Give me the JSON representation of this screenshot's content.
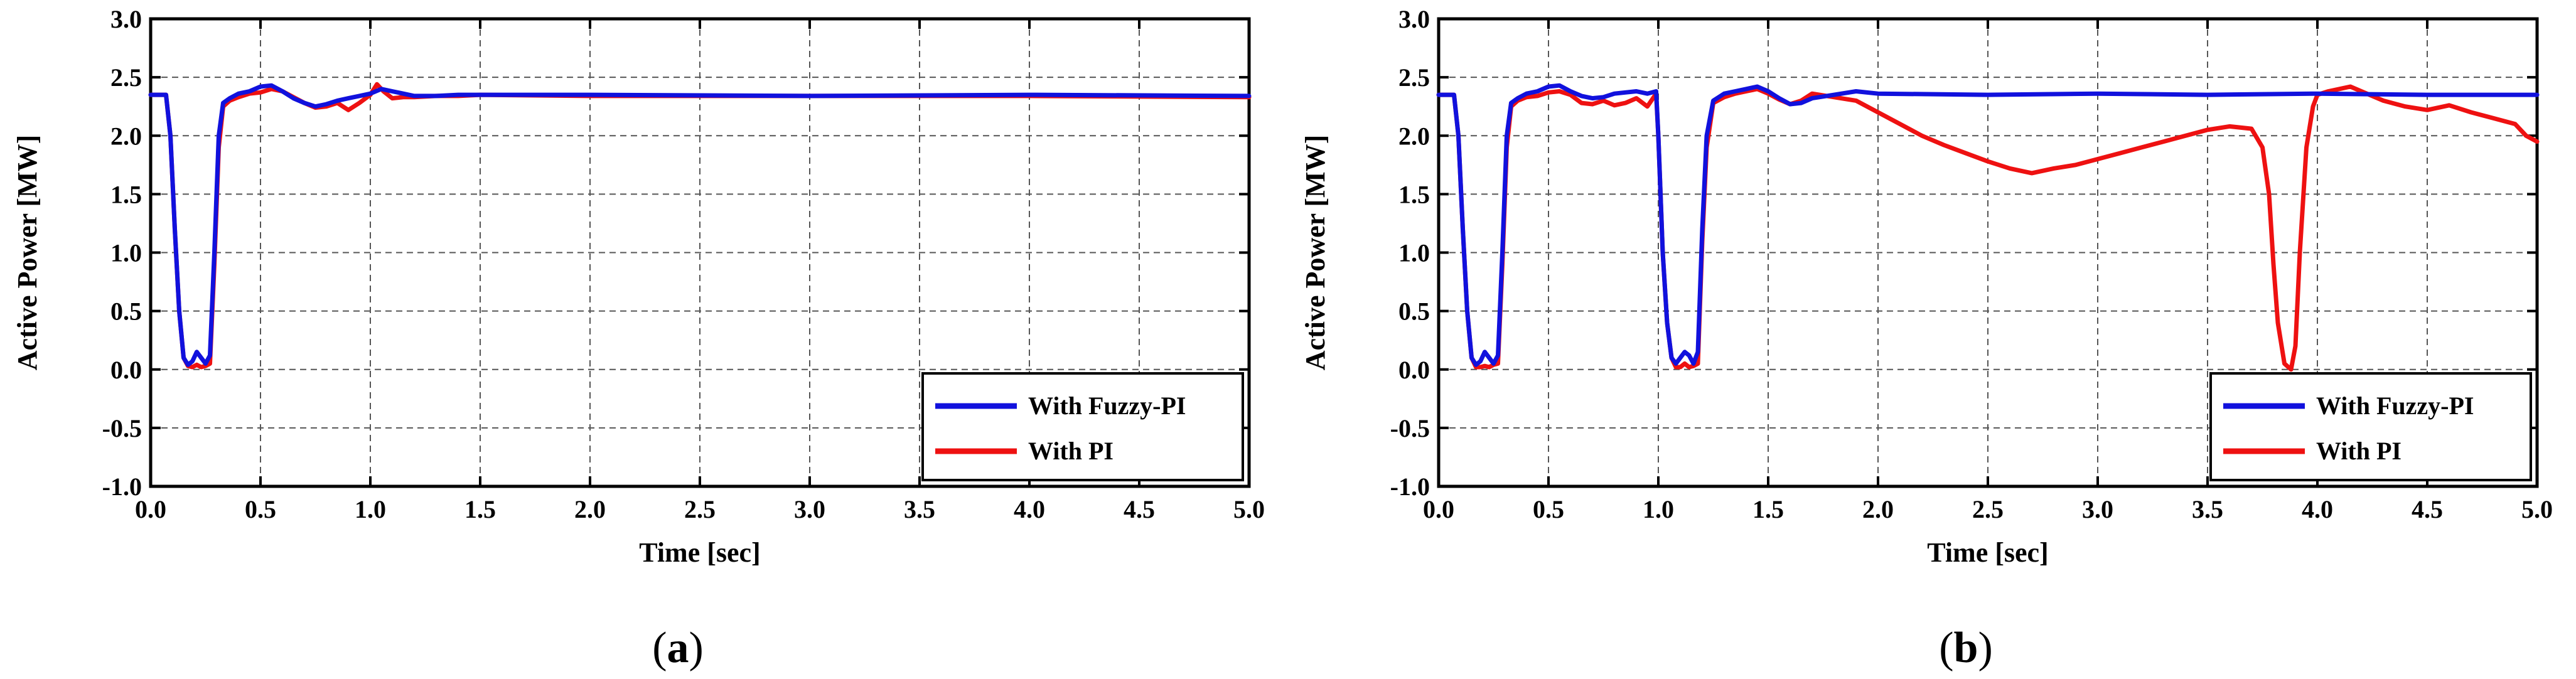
{
  "colors": {
    "fuzzy": "#1111dd",
    "pi": "#ee1111",
    "grid": "#555555",
    "axis": "#000000"
  },
  "chart_data": [
    {
      "type": "line",
      "panel_label": "a",
      "xlabel": "Time [sec]",
      "ylabel": "Active Power [MW]",
      "xlim": [
        0.0,
        5.0
      ],
      "ylim": [
        -1.0,
        3.0
      ],
      "xticks": [
        "0.0",
        "0.5",
        "1.0",
        "1.5",
        "2.0",
        "2.5",
        "3.0",
        "3.5",
        "4.0",
        "4.5",
        "5.0"
      ],
      "yticks": [
        "3.0",
        "2.5",
        "2.0",
        "1.5",
        "1.0",
        "0.5",
        "0.0",
        "-0.5",
        "-1.0"
      ],
      "grid": true,
      "legend_position": "bottom-right",
      "series": [
        {
          "name": "With Fuzzy-PI",
          "color_key": "fuzzy",
          "x": [
            0.0,
            0.07,
            0.09,
            0.11,
            0.13,
            0.15,
            0.17,
            0.19,
            0.21,
            0.23,
            0.25,
            0.27,
            0.29,
            0.31,
            0.33,
            0.36,
            0.4,
            0.45,
            0.5,
            0.55,
            0.6,
            0.65,
            0.7,
            0.75,
            0.8,
            0.85,
            0.9,
            0.95,
            1.0,
            1.05,
            1.1,
            1.15,
            1.2,
            1.3,
            1.4,
            1.5,
            2.0,
            3.0,
            4.0,
            5.0
          ],
          "y": [
            2.35,
            2.35,
            2.0,
            1.2,
            0.5,
            0.1,
            0.04,
            0.07,
            0.15,
            0.1,
            0.05,
            0.12,
            1.0,
            2.0,
            2.28,
            2.32,
            2.36,
            2.38,
            2.42,
            2.43,
            2.38,
            2.32,
            2.28,
            2.25,
            2.27,
            2.3,
            2.32,
            2.34,
            2.36,
            2.4,
            2.38,
            2.36,
            2.34,
            2.34,
            2.35,
            2.35,
            2.35,
            2.34,
            2.35,
            2.34
          ]
        },
        {
          "name": "With PI",
          "color_key": "pi",
          "x": [
            0.0,
            0.07,
            0.09,
            0.11,
            0.13,
            0.15,
            0.17,
            0.19,
            0.21,
            0.23,
            0.25,
            0.27,
            0.29,
            0.31,
            0.33,
            0.36,
            0.4,
            0.45,
            0.5,
            0.55,
            0.6,
            0.65,
            0.7,
            0.75,
            0.8,
            0.85,
            0.9,
            0.95,
            1.0,
            1.03,
            1.06,
            1.1,
            1.15,
            1.2,
            1.3,
            1.4,
            1.5,
            2.0,
            3.0,
            4.0,
            5.0
          ],
          "y": [
            2.35,
            2.35,
            2.0,
            1.2,
            0.5,
            0.1,
            0.03,
            0.02,
            0.04,
            0.02,
            0.03,
            0.05,
            0.9,
            1.9,
            2.25,
            2.3,
            2.33,
            2.36,
            2.37,
            2.4,
            2.38,
            2.33,
            2.28,
            2.24,
            2.25,
            2.28,
            2.22,
            2.28,
            2.35,
            2.44,
            2.38,
            2.32,
            2.33,
            2.33,
            2.34,
            2.34,
            2.35,
            2.34,
            2.34,
            2.34,
            2.33
          ]
        }
      ]
    },
    {
      "type": "line",
      "panel_label": "b",
      "xlabel": "Time [sec]",
      "ylabel": "Active Power [MW]",
      "xlim": [
        0.0,
        5.0
      ],
      "ylim": [
        -1.0,
        3.0
      ],
      "xticks": [
        "0.0",
        "0.5",
        "1.0",
        "1.5",
        "2.0",
        "2.5",
        "3.0",
        "3.5",
        "4.0",
        "4.5",
        "5.0"
      ],
      "yticks": [
        "3.0",
        "2.5",
        "2.0",
        "1.5",
        "1.0",
        "0.5",
        "0.0",
        "-0.5",
        "-1.0"
      ],
      "grid": true,
      "legend_position": "bottom-right",
      "series": [
        {
          "name": "With Fuzzy-PI",
          "color_key": "fuzzy",
          "x": [
            0.0,
            0.07,
            0.09,
            0.11,
            0.13,
            0.15,
            0.17,
            0.19,
            0.21,
            0.23,
            0.25,
            0.27,
            0.29,
            0.31,
            0.33,
            0.36,
            0.4,
            0.45,
            0.5,
            0.55,
            0.6,
            0.65,
            0.7,
            0.75,
            0.8,
            0.85,
            0.9,
            0.95,
            0.99,
            1.0,
            1.02,
            1.04,
            1.06,
            1.08,
            1.1,
            1.12,
            1.14,
            1.16,
            1.18,
            1.2,
            1.22,
            1.25,
            1.3,
            1.35,
            1.4,
            1.45,
            1.5,
            1.55,
            1.6,
            1.65,
            1.7,
            1.8,
            1.9,
            2.0,
            2.5,
            3.0,
            3.5,
            4.0,
            4.5,
            5.0
          ],
          "y": [
            2.35,
            2.35,
            2.0,
            1.2,
            0.5,
            0.1,
            0.04,
            0.07,
            0.15,
            0.1,
            0.05,
            0.12,
            1.0,
            2.0,
            2.28,
            2.32,
            2.36,
            2.38,
            2.42,
            2.43,
            2.38,
            2.34,
            2.32,
            2.33,
            2.36,
            2.37,
            2.38,
            2.36,
            2.38,
            2.0,
            1.0,
            0.4,
            0.1,
            0.05,
            0.1,
            0.15,
            0.12,
            0.05,
            0.15,
            1.2,
            2.0,
            2.3,
            2.36,
            2.38,
            2.4,
            2.42,
            2.38,
            2.32,
            2.27,
            2.28,
            2.32,
            2.35,
            2.38,
            2.36,
            2.35,
            2.36,
            2.35,
            2.36,
            2.35,
            2.35
          ]
        },
        {
          "name": "With PI",
          "color_key": "pi",
          "x": [
            0.0,
            0.07,
            0.09,
            0.11,
            0.13,
            0.15,
            0.17,
            0.19,
            0.21,
            0.23,
            0.25,
            0.27,
            0.29,
            0.31,
            0.33,
            0.36,
            0.4,
            0.45,
            0.5,
            0.55,
            0.6,
            0.65,
            0.7,
            0.75,
            0.8,
            0.85,
            0.9,
            0.95,
            0.99,
            1.0,
            1.02,
            1.04,
            1.06,
            1.08,
            1.1,
            1.12,
            1.14,
            1.16,
            1.18,
            1.2,
            1.22,
            1.25,
            1.3,
            1.35,
            1.4,
            1.45,
            1.5,
            1.55,
            1.6,
            1.65,
            1.7,
            1.8,
            1.9,
            2.0,
            2.1,
            2.2,
            2.3,
            2.4,
            2.5,
            2.6,
            2.7,
            2.8,
            2.9,
            3.0,
            3.1,
            3.2,
            3.3,
            3.4,
            3.5,
            3.6,
            3.7,
            3.75,
            3.78,
            3.8,
            3.82,
            3.85,
            3.88,
            3.9,
            3.92,
            3.95,
            3.98,
            4.0,
            4.05,
            4.1,
            4.15,
            4.2,
            4.3,
            4.4,
            4.5,
            4.6,
            4.7,
            4.8,
            4.9,
            4.95,
            5.0
          ],
          "y": [
            2.35,
            2.35,
            2.0,
            1.2,
            0.5,
            0.1,
            0.02,
            0.02,
            0.03,
            0.02,
            0.04,
            0.05,
            0.9,
            1.9,
            2.25,
            2.3,
            2.33,
            2.34,
            2.37,
            2.38,
            2.35,
            2.28,
            2.27,
            2.3,
            2.26,
            2.28,
            2.32,
            2.25,
            2.36,
            2.0,
            1.0,
            0.4,
            0.1,
            0.02,
            0.02,
            0.05,
            0.02,
            0.03,
            0.05,
            1.1,
            1.9,
            2.28,
            2.33,
            2.36,
            2.38,
            2.4,
            2.36,
            2.31,
            2.27,
            2.3,
            2.36,
            2.33,
            2.3,
            2.2,
            2.1,
            2.0,
            1.92,
            1.85,
            1.78,
            1.72,
            1.68,
            1.72,
            1.75,
            1.8,
            1.85,
            1.9,
            1.95,
            2.0,
            2.05,
            2.08,
            2.06,
            1.9,
            1.5,
            0.9,
            0.4,
            0.05,
            0.0,
            0.2,
            1.0,
            1.9,
            2.25,
            2.35,
            2.38,
            2.4,
            2.42,
            2.38,
            2.3,
            2.25,
            2.22,
            2.26,
            2.2,
            2.15,
            2.1,
            2.0,
            1.95
          ]
        }
      ]
    }
  ]
}
